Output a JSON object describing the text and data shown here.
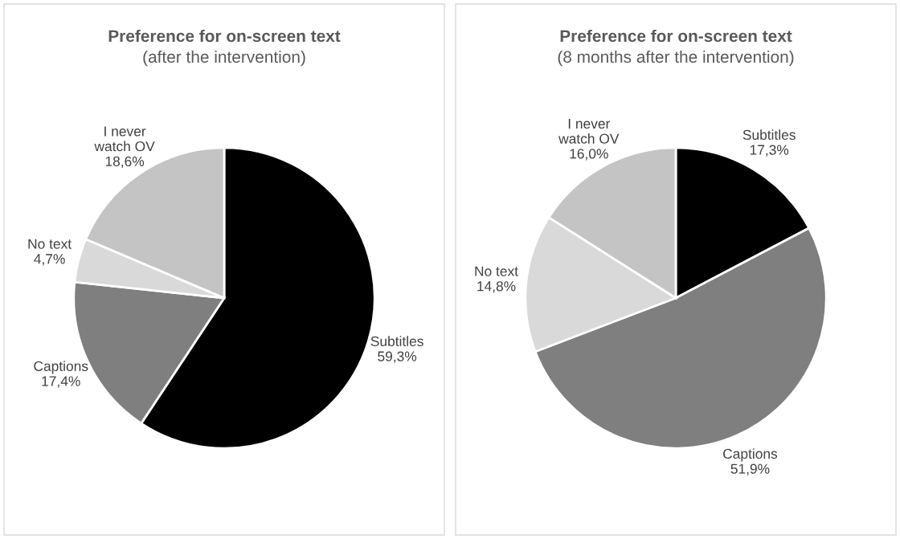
{
  "chart_data": [
    {
      "type": "pie",
      "title": "Preference for on-screen text",
      "subtitle": "(after the intervention)",
      "categories": [
        "Subtitles",
        "Captions",
        "No text",
        "I never\nwatch OV"
      ],
      "values": [
        59.3,
        17.4,
        4.7,
        18.6
      ],
      "colors": [
        "#000000",
        "#7f7f7f",
        "#d9d9d9",
        "#c4c4c4"
      ],
      "value_labels": [
        "59,3%",
        "17,4%",
        "4,7%",
        "18,6%"
      ],
      "legend": false
    },
    {
      "type": "pie",
      "title": "Preference for on-screen text",
      "subtitle": "(8 months after the intervention)",
      "categories": [
        "Subtitles",
        "Captions",
        "No text",
        "I never\nwatch OV"
      ],
      "values": [
        17.3,
        51.9,
        14.8,
        16.0
      ],
      "colors": [
        "#000000",
        "#7f7f7f",
        "#d9d9d9",
        "#c4c4c4"
      ],
      "value_labels": [
        "17,3%",
        "51,9%",
        "14,8%",
        "16,0%"
      ],
      "legend": false
    }
  ]
}
